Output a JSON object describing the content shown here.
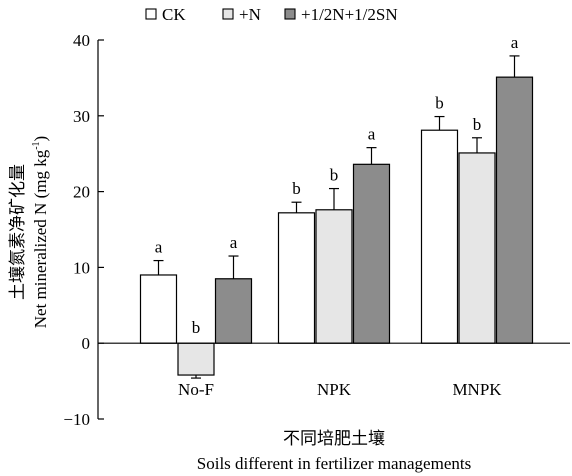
{
  "chart_data": {
    "type": "bar",
    "categories": [
      "No-F",
      "NPK",
      "MNPK"
    ],
    "series": [
      {
        "name": "CK",
        "values": [
          9.0,
          17.2,
          28.1
        ],
        "errors": [
          1.9,
          1.4,
          1.8
        ],
        "letters": [
          "a",
          "b",
          "b"
        ],
        "color": "#ffffff"
      },
      {
        "name": "+N",
        "values": [
          -4.2,
          17.6,
          25.1
        ],
        "errors": [
          0.4,
          2.8,
          2.0
        ],
        "letters": [
          "b",
          "b",
          "b"
        ],
        "color": "#e6e6e6"
      },
      {
        "name": "+1/2N+1/2SN",
        "values": [
          8.5,
          23.6,
          35.1
        ],
        "errors": [
          3.0,
          2.2,
          2.8
        ],
        "letters": [
          "a",
          "a",
          "a"
        ],
        "color": "#8c8c8c"
      }
    ],
    "ylabel_cn": "土壤氮素净矿化量",
    "ylabel_en_main": "Net mineralized N (mg kg",
    "ylabel_en_sup": "-1",
    "ylabel_en_close": ")",
    "xlabel_cn": "不同培肥土壤",
    "xlabel_en": "Soils different in fertilizer managements",
    "ylim": [
      -10,
      40
    ],
    "yticks": [
      -10,
      0,
      10,
      20,
      30,
      40
    ],
    "grid": false,
    "legend_position": "top"
  }
}
